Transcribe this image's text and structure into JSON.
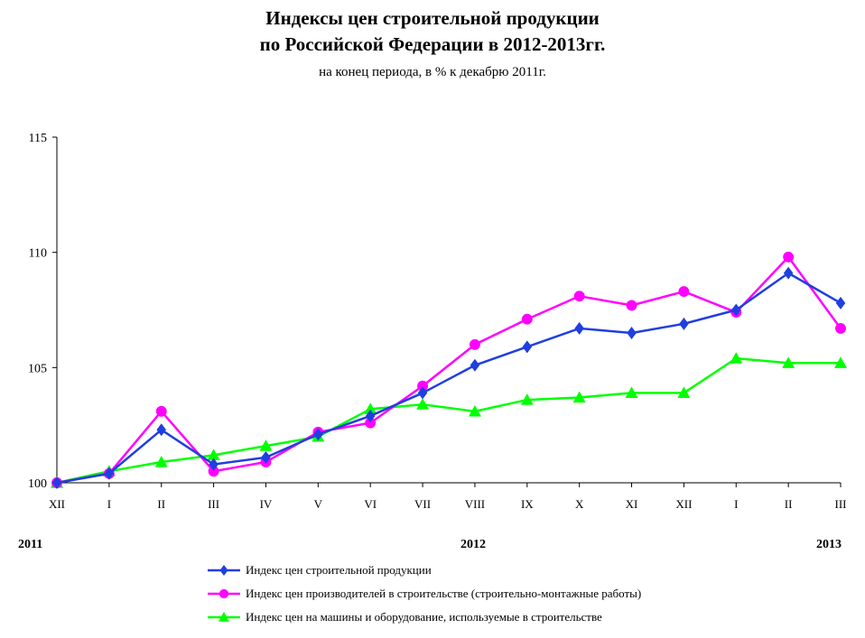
{
  "title_line1": "Индексы цен строительной продукции",
  "title_line2": "по Российской Федерации в 2012-2013гг.",
  "subtitle": "на конец периода, в % к декабрю 2011г.",
  "years": {
    "y2011": "2011",
    "y2012": "2012",
    "y2013": "2013"
  },
  "chart_data": {
    "type": "line",
    "categories": [
      "XII",
      "I",
      "II",
      "III",
      "IV",
      "V",
      "VI",
      "VII",
      "VIII",
      "IX",
      "X",
      "XI",
      "XII",
      "I",
      "II",
      "III"
    ],
    "ylim": [
      100,
      115
    ],
    "yticks": [
      "100",
      "105",
      "110",
      "115"
    ],
    "grid": false,
    "legend_position": "bottom",
    "series": [
      {
        "name": "Индекс цен строительной продукции",
        "color": "#1f3fdf",
        "marker": "diamond",
        "values": [
          100.0,
          100.4,
          102.3,
          100.8,
          101.1,
          102.1,
          102.9,
          103.9,
          105.1,
          105.9,
          106.7,
          106.5,
          106.9,
          107.5,
          109.1,
          107.8
        ]
      },
      {
        "name": "Индекс цен производителей в строительстве (строительно-монтажные работы)",
        "color": "#ff00ff",
        "marker": "circle",
        "values": [
          100.0,
          100.4,
          103.1,
          100.5,
          100.9,
          102.2,
          102.6,
          104.2,
          106.0,
          107.1,
          108.1,
          107.7,
          108.3,
          107.4,
          109.8,
          106.7
        ]
      },
      {
        "name": "Индекс цен на машины  и оборудование, используемые в строительстве",
        "color": "#00ff00",
        "marker": "triangle",
        "values": [
          100.0,
          100.5,
          100.9,
          101.2,
          101.6,
          102.0,
          103.2,
          103.4,
          103.1,
          103.6,
          103.7,
          103.9,
          103.9,
          105.4,
          105.2,
          105.2
        ]
      }
    ]
  }
}
